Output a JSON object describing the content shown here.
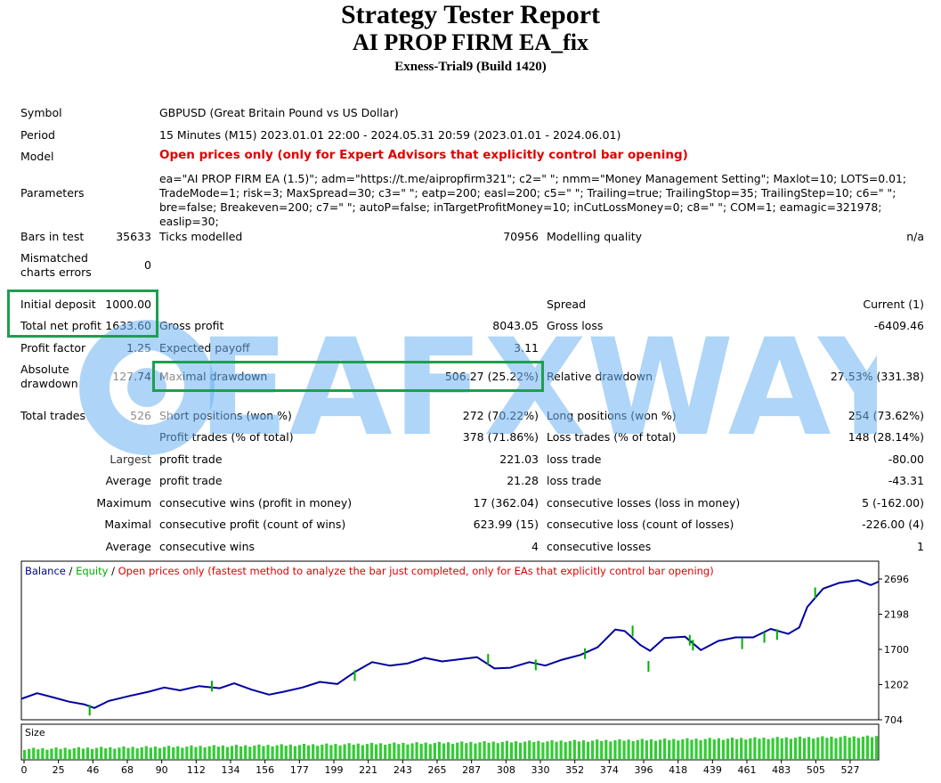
{
  "report": {
    "title": "Strategy Tester Report",
    "ea_name": "AI PROP FIRM EA_fix",
    "server": "Exness-Trial9 (Build 1420)"
  },
  "info": {
    "symbol_label": "Symbol",
    "symbol": "GBPUSD (Great Britain Pound vs US Dollar)",
    "period_label": "Period",
    "period": "15 Minutes (M15) 2023.01.01 22:00 - 2024.05.31 20:59 (2023.01.01 - 2024.06.01)",
    "model_label": "Model",
    "model": "Open prices only (only for Expert Advisors that explicitly control bar opening)",
    "parameters_label": "Parameters",
    "parameters": "ea=\"AI PROP FIRM EA (1.5)\"; adm=\"https://t.me/aipropfirm321\"; c2=\" \"; nmm=\"Money Management Setting\"; Maxlot=10; LOTS=0.01; TradeMode=1; risk=3; MaxSpread=30; c3=\" \"; eatp=200; easl=200; c5=\" \"; Trailing=true; TrailingStop=35; TrailingStep=10; c6=\" \"; bre=false; Breakeven=200; c7=\" \"; autoP=false; inTargetProfitMoney=10; inCutLossMoney=0; c8=\" \"; COM=1; eamagic=321978; easlip=30;"
  },
  "stats": {
    "bars_label": "Bars in test",
    "bars": "35633",
    "ticks_label": "Ticks modelled",
    "ticks": "70956",
    "quality_label": "Modelling quality",
    "quality": "n/a",
    "mismatch_label": "Mismatched charts errors",
    "mismatch": "0",
    "deposit_label": "Initial deposit",
    "deposit": "1000.00",
    "spread_label": "Spread",
    "spread": "Current (1)",
    "net_label": "Total net profit",
    "net": "1633.60",
    "gross_profit_label": "Gross profit",
    "gross_profit": "8043.05",
    "gross_loss_label": "Gross loss",
    "gross_loss": "-6409.46",
    "pf_label": "Profit factor",
    "pf": "1.25",
    "payoff_label": "Expected payoff",
    "payoff": "3.11",
    "abs_dd_label": "Absolute drawdown",
    "abs_dd": "127.74",
    "max_dd_label": "Maximal drawdown",
    "max_dd": "506.27 (25.22%)",
    "rel_dd_label": "Relative drawdown",
    "rel_dd": "27.53% (331.38)",
    "trades_label": "Total trades",
    "trades": "526",
    "short_label": "Short positions (won %)",
    "short": "272 (70.22%)",
    "long_label": "Long positions (won %)",
    "long": "254 (73.62%)",
    "profit_trades_label": "Profit trades (% of total)",
    "profit_trades": "378 (71.86%)",
    "loss_trades_label": "Loss trades (% of total)",
    "loss_trades": "148 (28.14%)",
    "largest_label": "Largest",
    "profit_trade_label": "profit trade",
    "largest_profit": "221.03",
    "loss_trade_label": "loss trade",
    "largest_loss": "-80.00",
    "average_label": "Average",
    "avg_profit": "21.28",
    "avg_loss": "-43.31",
    "maximum_label": "Maximum",
    "cons_wins_money_label": "consecutive wins (profit in money)",
    "cons_wins_money": "17 (362.04)",
    "cons_losses_money_label": "consecutive losses (loss in money)",
    "cons_losses_money": "5 (-162.00)",
    "maximal_label": "Maximal",
    "cons_profit_label": "consecutive profit (count of wins)",
    "cons_profit": "623.99 (15)",
    "cons_loss_label": "consecutive loss (count of losses)",
    "cons_loss": "-226.00 (4)",
    "average2_label": "Average",
    "cons_wins_label": "consecutive wins",
    "cons_wins": "4",
    "cons_losses_label": "consecutive losses",
    "cons_losses": "1"
  },
  "watermark": {
    "text": "EAFXWAY"
  },
  "chart_data": {
    "type": "line",
    "legend": {
      "balance": "Balance",
      "sep1": " / ",
      "equity": "Equity",
      "sep2": " / ",
      "note": "Open prices only (fastest method to analyze the bar just completed, only for EAs that explicitly control bar opening)"
    },
    "yticks": [
      "2696",
      "2198",
      "1700",
      "1202",
      "704"
    ],
    "ylim": [
      704,
      2696
    ],
    "xticks": [
      "0",
      "25",
      "46",
      "68",
      "90",
      "112",
      "134",
      "156",
      "177",
      "199",
      "221",
      "243",
      "265",
      "287",
      "308",
      "330",
      "352",
      "374",
      "396",
      "418",
      "439",
      "461",
      "483",
      "505",
      "527"
    ],
    "xlim": [
      0,
      540
    ],
    "series": [
      {
        "name": "Balance",
        "color": "#0000a0",
        "x": [
          0,
          10,
          20,
          30,
          40,
          46,
          55,
          68,
          80,
          90,
          100,
          112,
          125,
          134,
          145,
          156,
          165,
          177,
          188,
          199,
          210,
          221,
          232,
          243,
          254,
          265,
          276,
          287,
          298,
          308,
          320,
          330,
          340,
          352,
          363,
          374,
          380,
          390,
          396,
          405,
          418,
          428,
          439,
          450,
          461,
          472,
          483,
          490,
          495,
          505,
          515,
          527,
          535,
          540
        ],
        "values": [
          1000,
          1080,
          1020,
          960,
          920,
          870,
          970,
          1040,
          1100,
          1160,
          1120,
          1180,
          1150,
          1220,
          1130,
          1060,
          1100,
          1160,
          1240,
          1210,
          1380,
          1520,
          1470,
          1500,
          1580,
          1530,
          1560,
          1590,
          1430,
          1440,
          1520,
          1470,
          1550,
          1620,
          1730,
          1980,
          1960,
          1760,
          1680,
          1860,
          1880,
          1690,
          1820,
          1870,
          1870,
          1990,
          1920,
          2010,
          2300,
          2560,
          2640,
          2680,
          2610,
          2660
        ]
      },
      {
        "name": "Equity",
        "color": "#00b000",
        "x": [
          43,
          120,
          210,
          294,
          324,
          355,
          385,
          395,
          421,
          423,
          454,
          468,
          476,
          500
        ],
        "values": [
          840,
          1180,
          1330,
          1560,
          1480,
          1640,
          1960,
          1460,
          1830,
          1760,
          1780,
          1870,
          1910,
          2500
        ]
      }
    ],
    "size_panel": {
      "label": "Size"
    }
  }
}
